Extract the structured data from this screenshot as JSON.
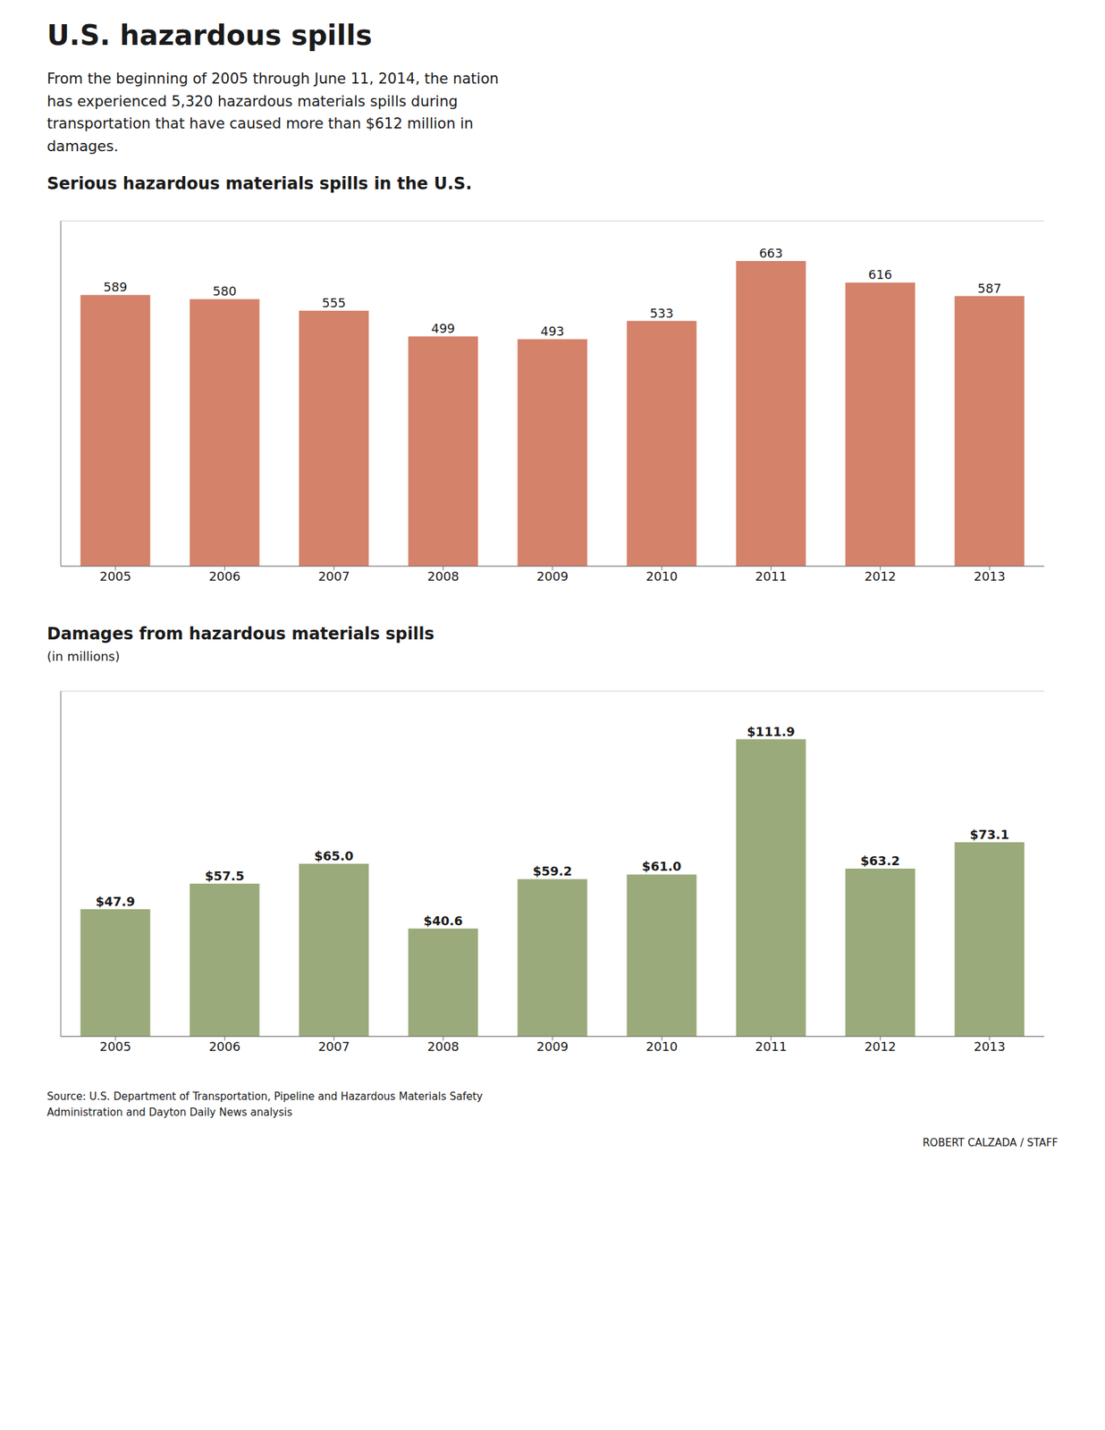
{
  "title": "U.S. hazardous spills",
  "subtitle": "From the beginning of 2005 through June 11, 2014, the nation\nhas experienced 5,320 hazardous materials spills during\ntransportation that have caused more than $612 million in\ndamages.",
  "annotations": [
    "Source: U.S. Department of Transportation, Pipeline and Hazardous Materials Safety\nAdministration and Dayton Daily News analysis",
    "ROBERT CALZADA / STAFF"
  ],
  "chart_data": [
    {
      "type": "bar",
      "title": "Serious hazardous materials spills in the U.S.",
      "categories": [
        "2005",
        "2006",
        "2007",
        "2008",
        "2009",
        "2010",
        "2011",
        "2012",
        "2013"
      ],
      "values": [
        589,
        580,
        555,
        499,
        493,
        533,
        663,
        616,
        587
      ],
      "color": "#d4826a",
      "ylim": [
        0,
        750
      ],
      "yticks": [
        0,
        100,
        200,
        300,
        400,
        500,
        600,
        700
      ],
      "grid": true,
      "data_labels": true,
      "tick_labels": "x"
    },
    {
      "type": "bar",
      "title": "Damages from hazardous materials spills",
      "subtitle": "(in millions)",
      "categories": [
        "2005",
        "2006",
        "2007",
        "2008",
        "2009",
        "2010",
        "2011",
        "2012",
        "2013"
      ],
      "values": [
        47.9,
        57.5,
        65.0,
        40.6,
        59.2,
        61.0,
        111.9,
        63.2,
        73.1
      ],
      "value_labels": [
        "$47.9",
        "$57.5",
        "$65.0",
        "$40.6",
        "$59.2",
        "$61.0",
        "$111.9",
        "$63.2",
        "$73.1"
      ],
      "color": "#9aaa7a",
      "ylim": [
        0,
        130
      ],
      "yticks": [
        0,
        20,
        40,
        60,
        80,
        100,
        120
      ],
      "grid": true,
      "data_labels": true,
      "tick_labels": "x"
    }
  ]
}
